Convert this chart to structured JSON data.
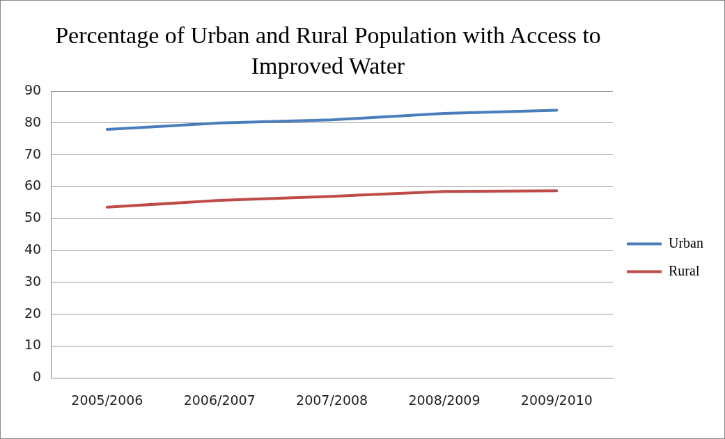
{
  "chart_data": {
    "type": "line",
    "title": "Percentage of Urban and Rural Population with Access to Improved Water",
    "categories": [
      "2005/2006",
      "2006/2007",
      "2007/2008",
      "2008/2009",
      "2009/2010"
    ],
    "series": [
      {
        "name": "Urban",
        "color": "#4a7ebb",
        "values": [
          78,
          80,
          81,
          83,
          84
        ]
      },
      {
        "name": "Rural",
        "color": "#be4b48",
        "values": [
          53.6,
          55.7,
          57,
          58.5,
          58.7
        ]
      }
    ],
    "ylim": [
      0,
      90
    ],
    "yticks": [
      0,
      10,
      20,
      30,
      40,
      50,
      60,
      70,
      80,
      90
    ],
    "grid": "y",
    "legend": "right",
    "marker": "none",
    "line_style": "solid"
  }
}
